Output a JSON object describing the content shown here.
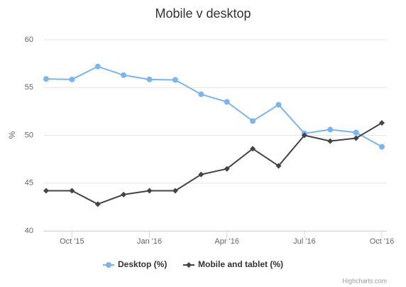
{
  "chart_data": {
    "type": "line",
    "title": "Mobile v desktop",
    "y_label": "%",
    "categories": [
      null,
      "Oct '15",
      null,
      null,
      "Jan '16",
      null,
      null,
      "Apr '16",
      null,
      null,
      "Jul '16",
      null,
      null,
      "Oct '16"
    ],
    "series": [
      {
        "name": "Desktop (%)",
        "color": "#7cb5ec",
        "marker": "circle",
        "values": [
          55.9,
          55.85,
          57.2,
          56.3,
          55.85,
          55.8,
          54.3,
          53.5,
          51.5,
          53.2,
          50.2,
          50.6,
          50.3,
          48.8
        ]
      },
      {
        "name": "Mobile and tablet (%)",
        "color": "#434348",
        "marker": "diamond",
        "values": [
          44.2,
          44.2,
          42.8,
          43.8,
          44.2,
          44.2,
          45.9,
          46.5,
          48.6,
          46.8,
          50.0,
          49.4,
          49.7,
          51.3
        ]
      }
    ],
    "ylim": [
      40,
      60
    ],
    "yticks": [
      40,
      45,
      50,
      55,
      60
    ],
    "grid": true,
    "legend": "bottom",
    "credits": "Highcharts.com"
  }
}
